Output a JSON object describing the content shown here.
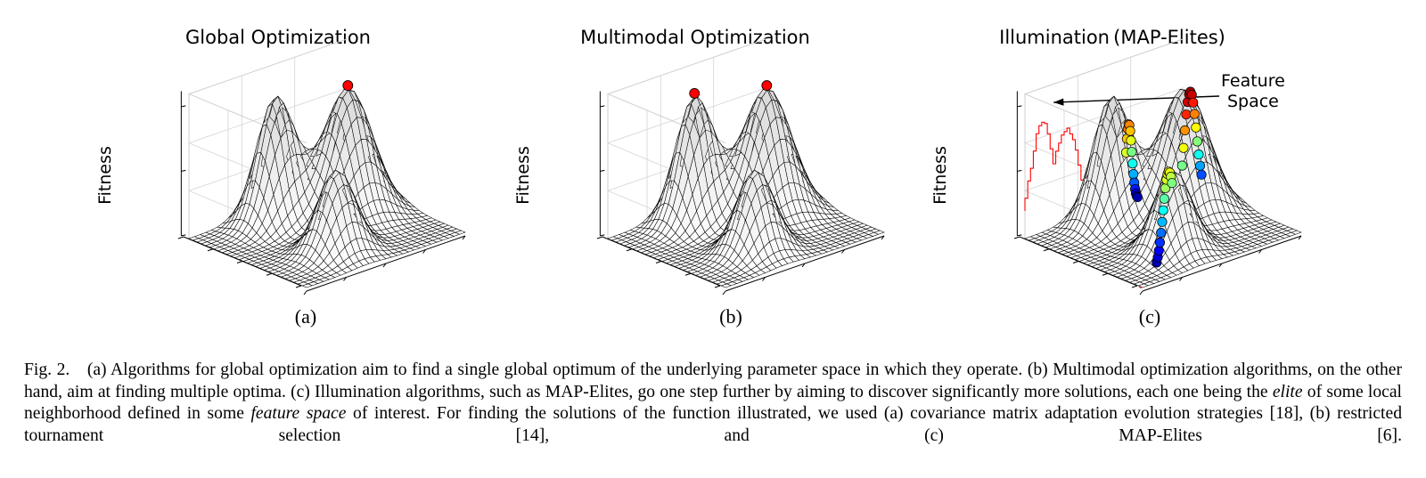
{
  "figure": {
    "panels": [
      {
        "title": "Global Optimization",
        "ylabel": "Fitness",
        "sublabel": "(a)",
        "mode": "global"
      },
      {
        "title": "Multimodal Optimization",
        "ylabel": "Fitness",
        "sublabel": "(b)",
        "mode": "multimodal"
      },
      {
        "title": "Illumination (MAP-Elites)",
        "ylabel": "Fitness",
        "sublabel": "(c)",
        "mode": "illumination",
        "annotation_line1": "Feature",
        "annotation_line2": "Space"
      }
    ],
    "colors": {
      "optimum_marker": "#ff0000",
      "feature_space_outline": "#ff0000",
      "mesh_line": "#000000",
      "surface_fill": "#f2f2f2"
    }
  },
  "caption": {
    "label": "Fig. 2.",
    "text_1": "(a) Algorithms for global optimization aim to find a single global optimum of the underlying parameter space in which they operate. (b) Multimodal optimization algorithms, on the other hand, aim at finding multiple optima. (c) Illumination algorithms, such as MAP-Elites, go one step further by aiming to discover significantly more solutions, each one being the",
    "em_1": "elite",
    "text_2": "of some local neighborhood defined in some",
    "em_2": "feature space",
    "text_3": "of interest. For finding the solutions of the function illustrated, we used (a) covariance matrix adaptation evolution strategies [18], (b) restricted tournament selection [14], and (c) MAP-Elites [6]."
  }
}
